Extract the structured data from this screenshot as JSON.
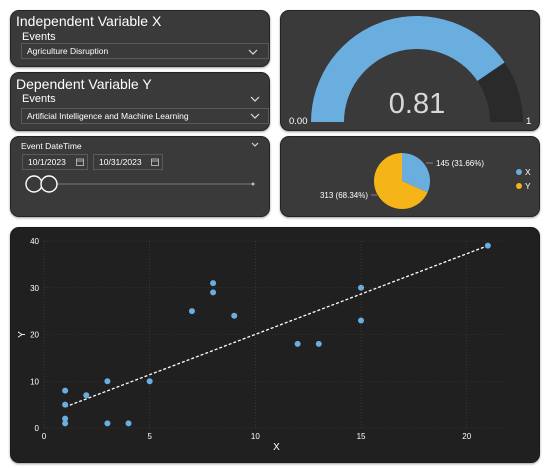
{
  "panel_x": {
    "title": "Independent Variable X",
    "field_label": "Events",
    "selected": "Agriculture Disruption"
  },
  "panel_y": {
    "title": "Dependent Variable Y",
    "field_label": "Events",
    "selected": "Artificial Intelligence and Machine Learning"
  },
  "date_filter": {
    "title": "Event DateTime",
    "start": "10/1/2023",
    "end": "10/31/2023"
  },
  "gauge": {
    "value_label": "0.81",
    "value": 0.81,
    "min_label": "0.00",
    "max_label": "1",
    "fill_color": "#6aaee0",
    "track_color": "#2a2a2a"
  },
  "pie": {
    "label_x": "145 (31.66%)",
    "label_y": "313 (68.34%)",
    "legend_x": "X",
    "legend_y": "Y",
    "color_x": "#6aaee0",
    "color_y": "#f5b417"
  },
  "chart_data": [
    {
      "type": "pie",
      "slices": [
        {
          "name": "X",
          "value": 145,
          "percent": 31.66,
          "color": "#6aaee0"
        },
        {
          "name": "Y",
          "value": 313,
          "percent": 68.34,
          "color": "#f5b417"
        }
      ]
    },
    {
      "type": "scatter",
      "xlabel": "X",
      "ylabel": "Y",
      "xlim": [
        0,
        22
      ],
      "ylim": [
        0,
        40
      ],
      "xticks": [
        "0",
        "5",
        "10",
        "15",
        "20"
      ],
      "yticks": [
        "0",
        "10",
        "20",
        "30",
        "40"
      ],
      "grid": true,
      "trendline": {
        "x": [
          1,
          21
        ],
        "y": [
          4.5,
          39
        ]
      },
      "points": [
        {
          "x": 1,
          "y": 1
        },
        {
          "x": 1,
          "y": 2
        },
        {
          "x": 1,
          "y": 5
        },
        {
          "x": 1,
          "y": 8
        },
        {
          "x": 2,
          "y": 7
        },
        {
          "x": 3,
          "y": 1
        },
        {
          "x": 3,
          "y": 10
        },
        {
          "x": 4,
          "y": 1
        },
        {
          "x": 5,
          "y": 10
        },
        {
          "x": 7,
          "y": 25
        },
        {
          "x": 8,
          "y": 29
        },
        {
          "x": 8,
          "y": 31
        },
        {
          "x": 9,
          "y": 24
        },
        {
          "x": 12,
          "y": 18
        },
        {
          "x": 13,
          "y": 18
        },
        {
          "x": 15,
          "y": 23
        },
        {
          "x": 15,
          "y": 30
        },
        {
          "x": 21,
          "y": 39
        }
      ],
      "point_color": "#6aaee0"
    }
  ]
}
